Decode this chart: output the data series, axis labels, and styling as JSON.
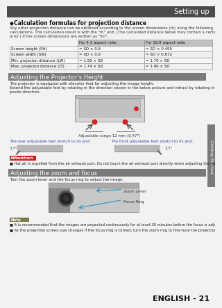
{
  "page_bg": "#f2f2f2",
  "header_bg": "#4a4a4a",
  "header_text": "Setting up",
  "header_text_color": "#ffffff",
  "section_bg": "#7a7a7a",
  "section_text_color": "#ffffff",
  "bullet_symbol": "◆",
  "section1_title": "Calculation formulas for projection distance",
  "section1_intro_lines": [
    "Any other projection distance can be obtained according to the screen dimensions (m) using the following",
    "calculations. The calculation result is with the \"m\" unit. (The calculated distance below may contain a certain",
    "error.) If the screen dimensions are written as \"SD\","
  ],
  "table_header_bg": "#c0c0c0",
  "table_row_bg": "#ffffff",
  "table_col2": "For 4:3 aspect ratio",
  "table_col3": "For 16:9 aspect ratio",
  "table_rows": [
    [
      "Screen height (SH)",
      "= SD × 0.6",
      "= SD × 0.490"
    ],
    [
      "Screen width (SW)",
      "= SD × 0.8",
      "= SD × 0.872"
    ],
    [
      "Min. projecion distance (LW)",
      "= 1.56 × SD",
      "= 1.70 × SD"
    ],
    [
      "Max. projecion distance (LT)",
      "= 1.74 × SD",
      "= 1.90 × SD"
    ]
  ],
  "section2_title": "Adjusting the Projector’s Height",
  "section2_text1": "The projector is equipped with elevator feet for adjusting the image height.",
  "section2_text2": "Extend the adjustable feet by rotating in the direction shown in the below picture and retract by rotating in the op-",
  "section2_text3": "posite direction.",
  "adj_range_text": "Adjustable range 12 mm (0.47\")",
  "rear_label": "The rear adjustable feet stretch to its end.",
  "front_label": "The front adjustable feet stretch to its end.",
  "angle_left": "3.7°",
  "angle_right": "3.7°",
  "attention_bg": "#cc2222",
  "attention_text": "Attention",
  "attention_note": "■ Hot air is expelled from the air exhaust port. Do not touch the air exhaust port directly when adjusting the adjustable feet.",
  "section3_title": "Adjusting the zoom and focus",
  "section3_text": "Turn the zoom lever and the focus ring to adjust the image.",
  "zoom_lever_label": "Zoom Lever",
  "focus_ring_label": "Focus Ring",
  "note_bg": "#7a7a44",
  "note_text": "Note",
  "note_items": [
    "■ It is recommended that the images are projected continuously for at least 30 minutes before the focus is adjusted.",
    "■ As the projection screen size changes if the focus ring is turned, turn the zoom ring to fine-tune the projection screen size again."
  ],
  "footer_text": "ENGLISH - 21",
  "sidebar_text": "Getting Started",
  "sidebar_bg": "#7a7a7a",
  "sidebar_text_color": "#ffffff"
}
